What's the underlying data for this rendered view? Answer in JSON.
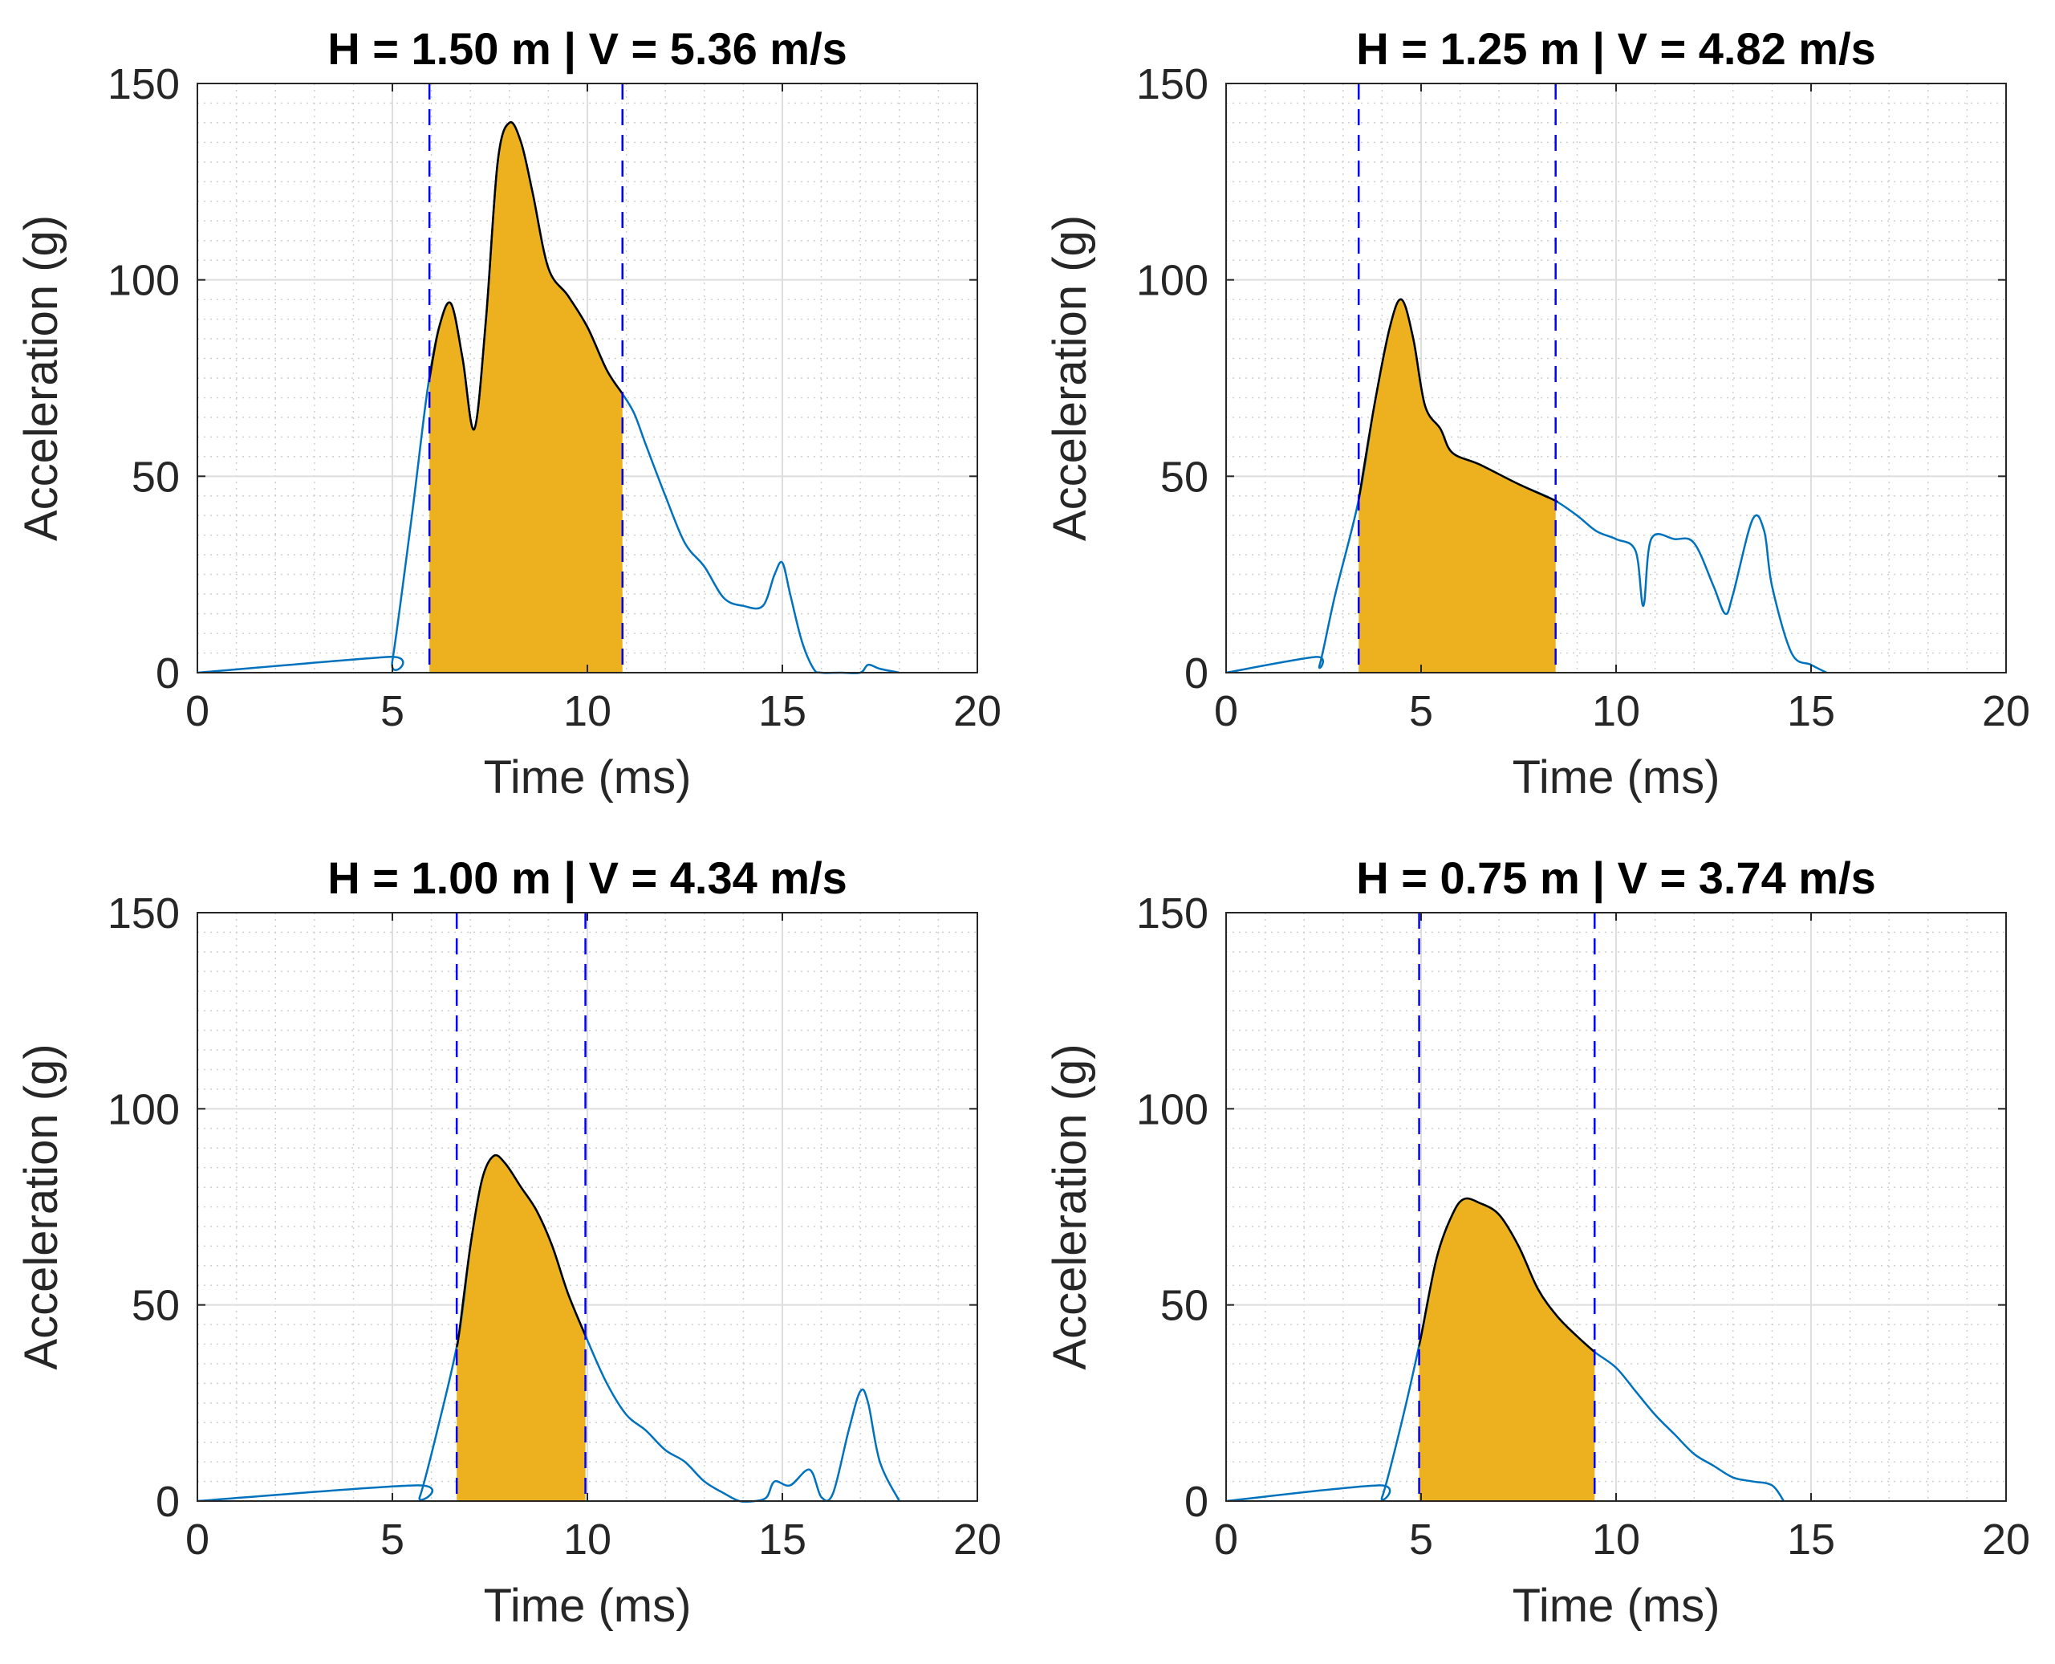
{
  "chart_data": [
    {
      "type": "line",
      "title": "H = 1.50 m | V = 5.36 m/s",
      "xlabel": "Time (ms)",
      "ylabel": "Acceleration (g)",
      "xlim": [
        0,
        20
      ],
      "ylim": [
        0,
        150
      ],
      "xticks": [
        "0",
        "5",
        "10",
        "15",
        "20"
      ],
      "yticks": [
        "0",
        "50",
        "100",
        "150"
      ],
      "grid": true,
      "series": [
        {
          "name": "acceleration",
          "color": "#0072BD",
          "x": [
            0,
            4.9,
            5.0,
            5.5,
            5.9,
            6.2,
            6.5,
            6.8,
            7.1,
            7.4,
            7.7,
            8.0,
            8.3,
            8.6,
            9.0,
            9.5,
            10.0,
            10.5,
            10.9,
            11.2,
            11.5,
            12.0,
            12.5,
            13.0,
            13.5,
            14.0,
            14.5,
            14.8,
            15.0,
            15.2,
            15.5,
            15.8,
            16.0,
            16.5,
            17.0,
            17.2,
            17.5,
            18.0
          ],
          "values": [
            0,
            4,
            3,
            40,
            72,
            88,
            94,
            80,
            62,
            90,
            130,
            140,
            135,
            122,
            103,
            96,
            88,
            77,
            71,
            66,
            58,
            45,
            33,
            27,
            19,
            17,
            17,
            25,
            28,
            20,
            8,
            1,
            0,
            0,
            0,
            2,
            1,
            0
          ]
        }
      ],
      "shaded_interval": [
        5.95,
        10.9
      ],
      "shade_color": "#EDB120",
      "vlines": [
        5.95,
        10.9
      ],
      "vline_color": "#0000FF"
    },
    {
      "type": "line",
      "title": "H = 1.25 m | V = 4.82 m/s",
      "xlabel": "Time (ms)",
      "ylabel": "Acceleration (g)",
      "xlim": [
        0,
        20
      ],
      "ylim": [
        0,
        150
      ],
      "xticks": [
        "0",
        "5",
        "10",
        "15",
        "20"
      ],
      "yticks": [
        "0",
        "50",
        "100",
        "150"
      ],
      "grid": true,
      "series": [
        {
          "name": "acceleration",
          "color": "#0072BD",
          "x": [
            0,
            2.3,
            2.4,
            2.8,
            3.4,
            3.8,
            4.2,
            4.5,
            4.8,
            5.1,
            5.5,
            5.8,
            6.5,
            7.5,
            8.4,
            9.0,
            9.5,
            10.0,
            10.5,
            10.7,
            10.9,
            11.5,
            12.0,
            12.5,
            12.8,
            13.0,
            13.5,
            13.8,
            14.0,
            14.5,
            15.0,
            15.4
          ],
          "values": [
            0,
            4,
            2,
            20,
            44,
            68,
            88,
            95,
            85,
            68,
            62,
            56,
            53,
            48,
            44,
            40,
            36,
            34,
            31,
            17,
            34,
            34,
            33,
            22,
            15,
            20,
            39,
            36,
            22,
            5,
            2,
            0
          ]
        }
      ],
      "shaded_interval": [
        3.4,
        8.45
      ],
      "shade_color": "#EDB120",
      "vlines": [
        3.4,
        8.45
      ],
      "vline_color": "#0000FF"
    },
    {
      "type": "line",
      "title": "H = 1.00 m | V = 4.34 m/s",
      "xlabel": "Time (ms)",
      "ylabel": "Acceleration (g)",
      "xlim": [
        0,
        20
      ],
      "ylim": [
        0,
        150
      ],
      "xticks": [
        "0",
        "5",
        "10",
        "15",
        "20"
      ],
      "yticks": [
        "0",
        "50",
        "100",
        "150"
      ],
      "grid": true,
      "series": [
        {
          "name": "acceleration",
          "color": "#0072BD",
          "x": [
            0,
            5.6,
            5.7,
            6.2,
            6.7,
            7.0,
            7.3,
            7.6,
            7.9,
            8.3,
            8.7,
            9.1,
            9.5,
            10.0,
            10.5,
            11.0,
            11.5,
            12.0,
            12.5,
            13.0,
            13.5,
            13.9,
            14.3,
            14.6,
            14.8,
            15.2,
            15.7,
            16.0,
            16.3,
            16.7,
            17.0,
            17.2,
            17.5,
            18.0
          ],
          "values": [
            0,
            4,
            1,
            20,
            42,
            65,
            82,
            88,
            86,
            80,
            74,
            65,
            53,
            41,
            30,
            22,
            18,
            13,
            10,
            5,
            2,
            0,
            0,
            1,
            5,
            4,
            8,
            1,
            2,
            18,
            28,
            25,
            10,
            0
          ]
        }
      ],
      "shaded_interval": [
        6.65,
        9.95
      ],
      "shade_color": "#EDB120",
      "vlines": [
        6.65,
        9.95
      ],
      "vline_color": "#0000FF"
    },
    {
      "type": "line",
      "title": "H = 0.75 m | V = 3.74 m/s",
      "xlabel": "Time (ms)",
      "ylabel": "Acceleration (g)",
      "xlim": [
        0,
        20
      ],
      "ylim": [
        0,
        150
      ],
      "xticks": [
        "0",
        "5",
        "10",
        "15",
        "20"
      ],
      "yticks": [
        "0",
        "50",
        "100",
        "150"
      ],
      "grid": true,
      "series": [
        {
          "name": "acceleration",
          "color": "#0072BD",
          "x": [
            0,
            3.9,
            4.0,
            4.5,
            5.0,
            5.4,
            5.8,
            6.1,
            6.5,
            7.0,
            7.5,
            8.0,
            8.5,
            9.0,
            9.45,
            10.0,
            10.5,
            11.0,
            11.5,
            12.0,
            12.5,
            13.0,
            13.5,
            14.0,
            14.3
          ],
          "values": [
            0,
            4,
            1,
            20,
            42,
            62,
            73,
            77,
            76,
            73,
            65,
            54,
            47,
            42,
            38,
            34,
            28,
            22,
            17,
            12,
            9,
            6,
            5,
            4,
            0
          ]
        }
      ],
      "shaded_interval": [
        4.95,
        9.45
      ],
      "shade_color": "#EDB120",
      "vlines": [
        4.95,
        9.45
      ],
      "vline_color": "#0000FF"
    }
  ]
}
